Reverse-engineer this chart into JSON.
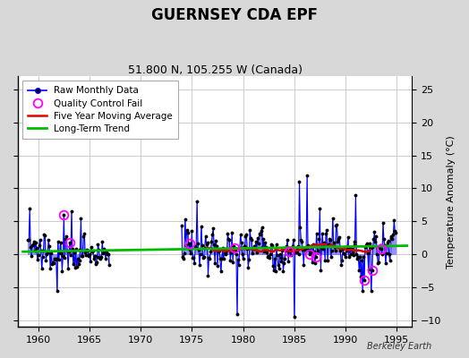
{
  "title": "GUERNSEY CDA EPF",
  "subtitle": "51.800 N, 105.255 W (Canada)",
  "ylabel_right": "Temperature Anomaly (°C)",
  "watermark": "Berkeley Earth",
  "xlim": [
    1958.0,
    1996.5
  ],
  "ylim": [
    -11,
    27
  ],
  "yticks": [
    -10,
    -5,
    0,
    5,
    10,
    15,
    20,
    25
  ],
  "xticks": [
    1960,
    1965,
    1970,
    1975,
    1980,
    1985,
    1990,
    1995
  ],
  "fig_background": "#d8d8d8",
  "plot_background": "#ffffff",
  "grid_color": "#cccccc",
  "stem_color": "#6666ff",
  "line_color": "#0000ff",
  "dot_color": "#000000",
  "moving_avg_color": "#dd0000",
  "trend_color": "#00bb00",
  "qc_color": "#ff00ff",
  "seed": 137
}
